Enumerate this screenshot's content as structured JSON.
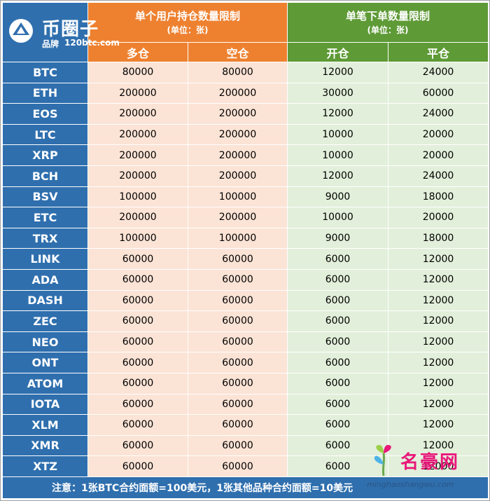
{
  "logo": {
    "title": "币圈子",
    "sub": "品牌",
    "url": "120btc.com"
  },
  "headers": {
    "position_limit": {
      "title": "单个用户持仓数量限制",
      "unit": "(单位：张)"
    },
    "order_limit": {
      "title": "单笔下单数量限制",
      "unit": "(单位：张)"
    },
    "long": "多仓",
    "short": "空仓",
    "open": "开仓",
    "close": "平仓"
  },
  "rows": [
    {
      "coin": "BTC",
      "long": "80000",
      "short": "80000",
      "open": "12000",
      "close": "24000"
    },
    {
      "coin": "ETH",
      "long": "200000",
      "short": "200000",
      "open": "30000",
      "close": "60000"
    },
    {
      "coin": "EOS",
      "long": "200000",
      "short": "200000",
      "open": "12000",
      "close": "24000"
    },
    {
      "coin": "LTC",
      "long": "200000",
      "short": "200000",
      "open": "10000",
      "close": "20000"
    },
    {
      "coin": "XRP",
      "long": "200000",
      "short": "200000",
      "open": "10000",
      "close": "20000"
    },
    {
      "coin": "BCH",
      "long": "200000",
      "short": "200000",
      "open": "12000",
      "close": "24000"
    },
    {
      "coin": "BSV",
      "long": "100000",
      "short": "100000",
      "open": "9000",
      "close": "18000"
    },
    {
      "coin": "ETC",
      "long": "200000",
      "short": "200000",
      "open": "10000",
      "close": "20000"
    },
    {
      "coin": "TRX",
      "long": "100000",
      "short": "100000",
      "open": "9000",
      "close": "18000"
    },
    {
      "coin": "LINK",
      "long": "60000",
      "short": "60000",
      "open": "6000",
      "close": "12000"
    },
    {
      "coin": "ADA",
      "long": "60000",
      "short": "60000",
      "open": "6000",
      "close": "12000"
    },
    {
      "coin": "DASH",
      "long": "60000",
      "short": "60000",
      "open": "6000",
      "close": "12000"
    },
    {
      "coin": "ZEC",
      "long": "60000",
      "short": "60000",
      "open": "6000",
      "close": "12000"
    },
    {
      "coin": "NEO",
      "long": "60000",
      "short": "60000",
      "open": "6000",
      "close": "12000"
    },
    {
      "coin": "ONT",
      "long": "60000",
      "short": "60000",
      "open": "6000",
      "close": "12000"
    },
    {
      "coin": "ATOM",
      "long": "60000",
      "short": "60000",
      "open": "6000",
      "close": "12000"
    },
    {
      "coin": "IOTA",
      "long": "60000",
      "short": "60000",
      "open": "6000",
      "close": "12000"
    },
    {
      "coin": "XLM",
      "long": "60000",
      "short": "60000",
      "open": "6000",
      "close": "12000"
    },
    {
      "coin": "XMR",
      "long": "60000",
      "short": "60000",
      "open": "6000",
      "close": "12000"
    },
    {
      "coin": "XTZ",
      "long": "60000",
      "short": "60000",
      "open": "6000",
      "close": "12000"
    }
  ],
  "note": "注意：1张BTC合约面额=100美元，1张其他品种合约面额=10美元",
  "watermark": {
    "name": "名豪网",
    "url": "minghaoshangwu.com"
  },
  "colors": {
    "blue": "#2f6fae",
    "orange": "#ee8130",
    "green": "#5e9a36",
    "orange_light": "#fbe3d5",
    "green_light": "#e2efda"
  }
}
